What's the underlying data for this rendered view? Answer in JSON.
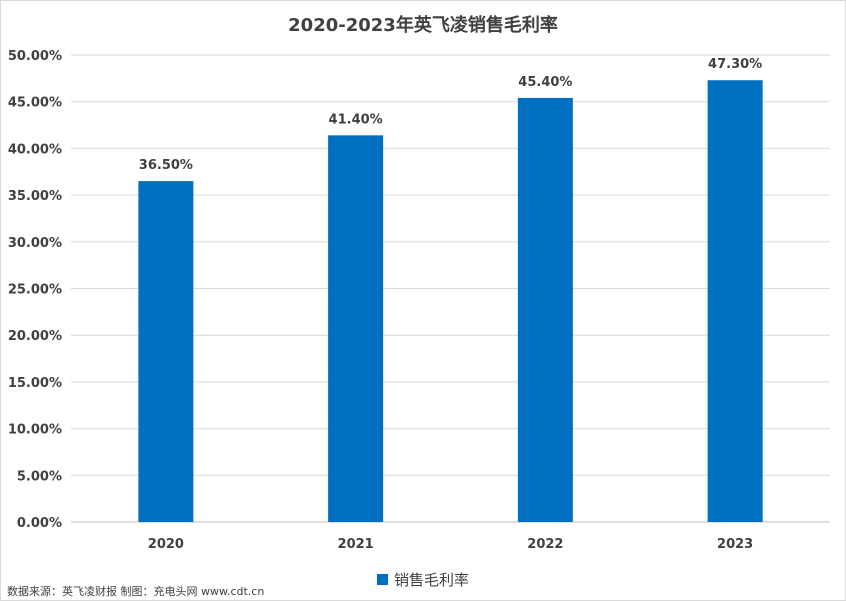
{
  "chart_data": {
    "type": "bar",
    "title": "2020-2023年英飞凌销售毛利率",
    "categories": [
      "2020",
      "2021",
      "2022",
      "2023"
    ],
    "series": [
      {
        "name": "销售毛利率",
        "values": [
          36.5,
          41.4,
          45.4,
          47.3
        ],
        "color": "#0070c0"
      }
    ],
    "data_labels": [
      "36.50%",
      "41.40%",
      "45.40%",
      "47.30%"
    ],
    "ylim": [
      0,
      50
    ],
    "yticks": [
      0,
      5,
      10,
      15,
      20,
      25,
      30,
      35,
      40,
      45,
      50
    ],
    "ytick_labels": [
      "0.00%",
      "5.00%",
      "10.00%",
      "15.00%",
      "20.00%",
      "25.00%",
      "30.00%",
      "35.00%",
      "40.00%",
      "45.00%",
      "50.00%"
    ],
    "grid": true,
    "legend_position": "bottom-center",
    "xlabel": "",
    "ylabel": ""
  },
  "source_note": "数据来源：英飞凌财报 制图：充电头网 www.cdt.cn"
}
